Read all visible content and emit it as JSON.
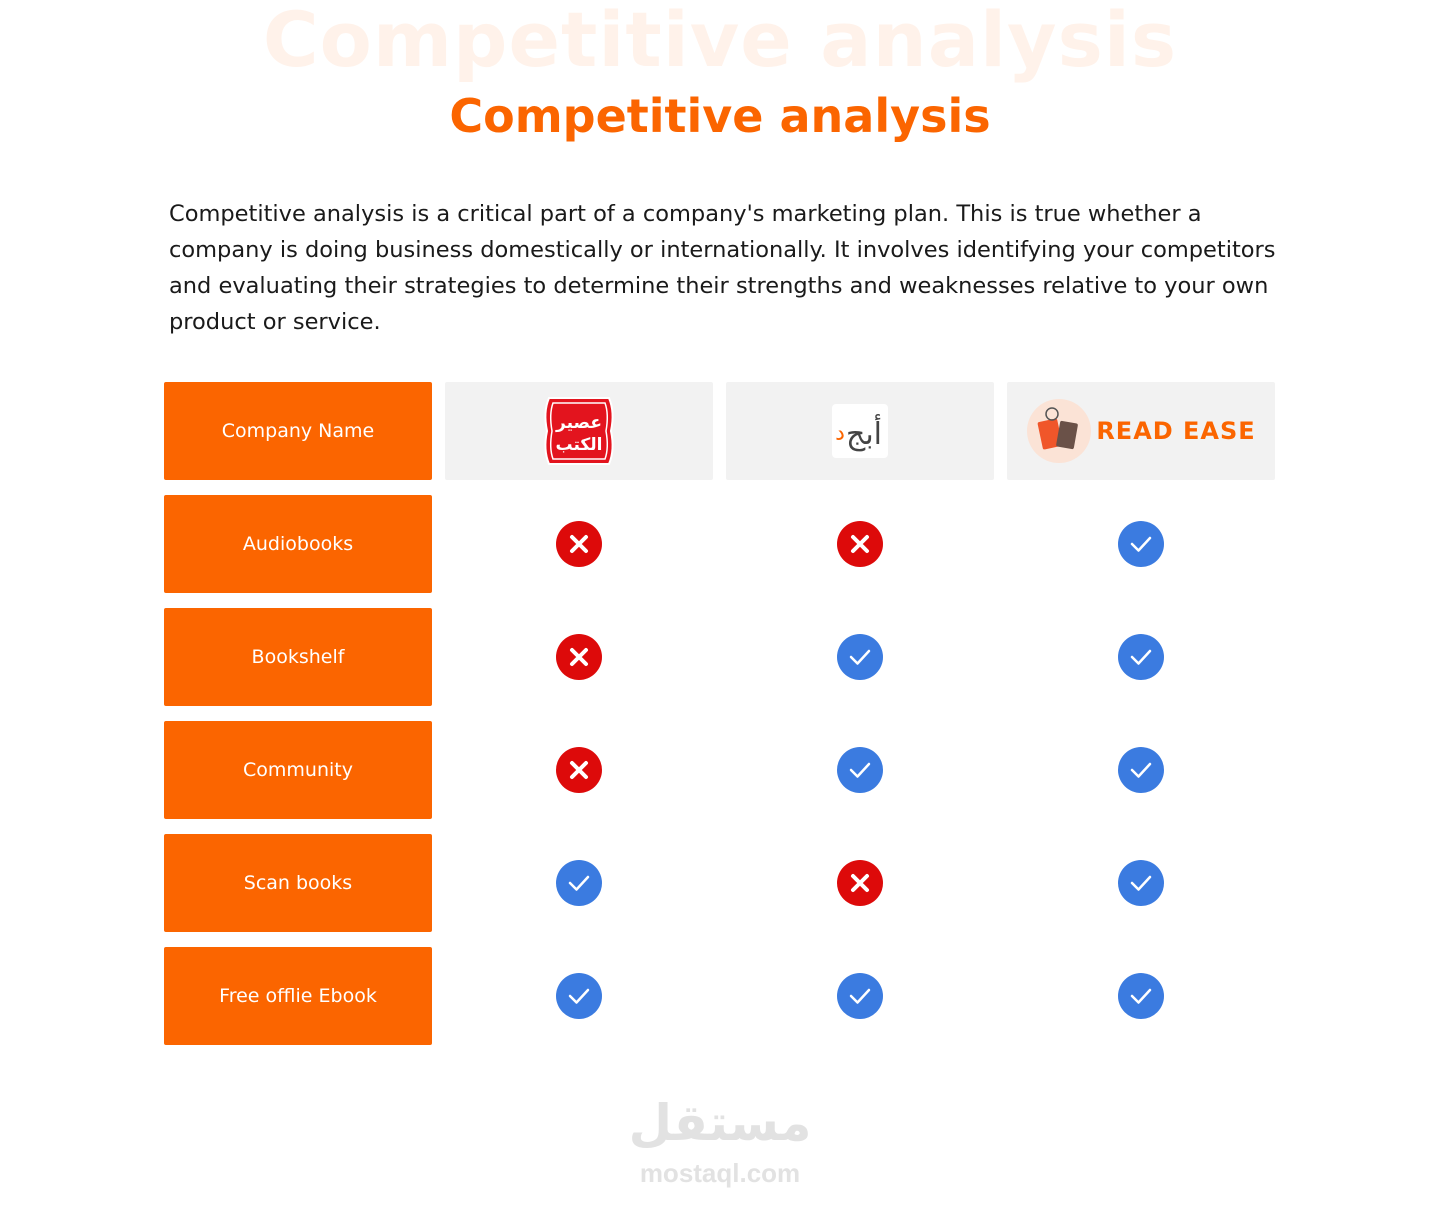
{
  "header": {
    "ghost_title": "Competitive analysis",
    "title": "Competitive analysis"
  },
  "intro": "Competitive analysis is a critical part of a company's marketing plan. This is true whether a company is doing business domestically or internationally. It involves identifying your competitors and evaluating their strategies to determine their strengths and weaknesses relative to your own product or service.",
  "colors": {
    "accent": "#fb6500",
    "check": "#3b7be0",
    "cross": "#dd0a0a"
  },
  "table": {
    "header_label": "Company Name",
    "companies": [
      {
        "logo_text": "عصير الكتب"
      },
      {
        "logo_text": "أبجد"
      },
      {
        "logo_text": "READ EASE"
      }
    ],
    "rows": [
      {
        "label": "Audiobooks",
        "values": [
          false,
          false,
          true
        ]
      },
      {
        "label": "Bookshelf",
        "values": [
          false,
          true,
          true
        ]
      },
      {
        "label": "Community",
        "values": [
          false,
          true,
          true
        ]
      },
      {
        "label": "Scan books",
        "values": [
          true,
          false,
          true
        ]
      },
      {
        "label": "Free offlie Ebook",
        "values": [
          true,
          true,
          true
        ]
      }
    ]
  },
  "watermark": {
    "arabic": "مستقل",
    "latin": "mostaql.com"
  }
}
